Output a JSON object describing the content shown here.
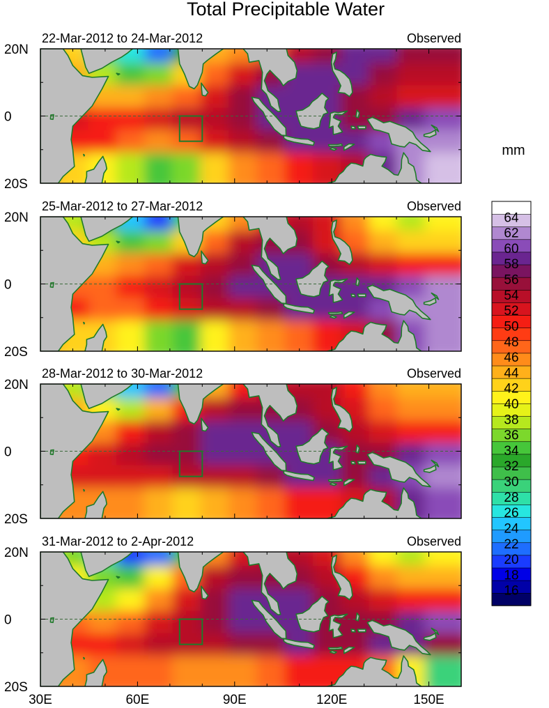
{
  "figure": {
    "title": "Total Precipitable Water",
    "units": "mm"
  },
  "colors": {
    "land": "#bebebe",
    "coast": "#1f7a2a",
    "box": "#1f7a2a",
    "equator": "#3a6a3a",
    "palette": [
      "#000066",
      "#0000a8",
      "#0000e6",
      "#1a3cff",
      "#1e6eff",
      "#1f9bff",
      "#22c6ff",
      "#27e6e0",
      "#2ee0a8",
      "#3ad27a",
      "#3fbf4a",
      "#2aa82a",
      "#46c63a",
      "#7cd82c",
      "#b6e81e",
      "#e6f218",
      "#fff21a",
      "#ffd21a",
      "#ffb01a",
      "#ff8c1a",
      "#ff661a",
      "#ff3c14",
      "#f51e14",
      "#d8141e",
      "#b80f28",
      "#98103a",
      "#7a1460",
      "#6a2590",
      "#8a4cb8",
      "#b088d0",
      "#d6c0e6",
      "#ffffff"
    ]
  },
  "chart_data": {
    "type": "heatmap",
    "title": "Total Precipitable Water",
    "colorbar": {
      "label": "mm",
      "ticks": [
        16,
        18,
        20,
        22,
        24,
        26,
        28,
        30,
        32,
        34,
        36,
        38,
        40,
        42,
        44,
        46,
        48,
        50,
        52,
        54,
        56,
        58,
        60,
        62,
        64
      ],
      "range": [
        14,
        66
      ],
      "levels": 32
    },
    "x_axis": {
      "range": [
        30,
        160
      ],
      "ticks": [
        30,
        60,
        90,
        120,
        150
      ],
      "tick_labels": [
        "30E",
        "60E",
        "90E",
        "120E",
        "150E"
      ]
    },
    "y_axis": {
      "range": [
        -20,
        20
      ],
      "ticks": [
        20,
        0,
        -20
      ],
      "tick_labels": [
        "20N",
        "0",
        "20S"
      ]
    },
    "box_region": {
      "lon": [
        73,
        80
      ],
      "lat": [
        -7.5,
        0
      ]
    },
    "panels": [
      {
        "period": "22-Mar-2012 to 24-Mar-2012",
        "label": "Observed",
        "tpw_mm": [
          [
            44,
            42,
            30,
            26,
            22,
            32,
            44,
            46,
            48,
            54,
            56,
            58,
            58,
            56,
            56
          ],
          [
            46,
            44,
            38,
            34,
            36,
            42,
            48,
            52,
            56,
            58,
            58,
            58,
            56,
            54,
            54
          ],
          [
            48,
            46,
            44,
            44,
            46,
            48,
            52,
            56,
            58,
            58,
            58,
            56,
            54,
            52,
            52
          ],
          [
            52,
            52,
            50,
            50,
            52,
            54,
            54,
            56,
            58,
            58,
            58,
            56,
            56,
            58,
            60
          ],
          [
            50,
            50,
            50,
            48,
            46,
            48,
            52,
            54,
            56,
            58,
            58,
            58,
            60,
            62,
            62
          ],
          [
            44,
            42,
            40,
            38,
            34,
            36,
            42,
            46,
            48,
            50,
            52,
            54,
            58,
            62,
            64
          ]
        ]
      },
      {
        "period": "25-Mar-2012 to 27-Mar-2012",
        "label": "Observed",
        "tpw_mm": [
          [
            42,
            38,
            32,
            24,
            20,
            30,
            42,
            46,
            50,
            54,
            52,
            46,
            40,
            38,
            40
          ],
          [
            44,
            42,
            38,
            34,
            36,
            42,
            48,
            54,
            56,
            56,
            52,
            48,
            44,
            42,
            42
          ],
          [
            46,
            44,
            44,
            46,
            48,
            52,
            54,
            56,
            58,
            58,
            56,
            54,
            52,
            50,
            50
          ],
          [
            50,
            48,
            48,
            50,
            52,
            54,
            56,
            58,
            58,
            58,
            58,
            58,
            58,
            60,
            62
          ],
          [
            50,
            50,
            48,
            48,
            50,
            52,
            54,
            54,
            56,
            58,
            58,
            58,
            60,
            62,
            62
          ],
          [
            44,
            42,
            42,
            40,
            36,
            34,
            40,
            44,
            46,
            48,
            50,
            52,
            56,
            60,
            62
          ]
        ]
      },
      {
        "period": "28-Mar-2012 to 30-Mar-2012",
        "label": "Observed",
        "tpw_mm": [
          [
            42,
            38,
            30,
            24,
            22,
            34,
            44,
            50,
            52,
            54,
            54,
            50,
            46,
            44,
            44
          ],
          [
            44,
            44,
            40,
            38,
            44,
            50,
            54,
            56,
            56,
            56,
            54,
            52,
            48,
            46,
            46
          ],
          [
            46,
            44,
            46,
            50,
            54,
            56,
            58,
            58,
            58,
            58,
            56,
            54,
            52,
            50,
            50
          ],
          [
            50,
            50,
            52,
            54,
            56,
            56,
            58,
            58,
            58,
            58,
            58,
            56,
            56,
            58,
            60
          ],
          [
            52,
            52,
            52,
            52,
            52,
            54,
            54,
            54,
            56,
            58,
            58,
            56,
            58,
            60,
            62
          ],
          [
            46,
            46,
            46,
            46,
            44,
            42,
            44,
            46,
            48,
            50,
            50,
            52,
            54,
            58,
            60
          ]
        ]
      },
      {
        "period": "31-Mar-2012 to 2-Apr-2012",
        "label": "Observed",
        "tpw_mm": [
          [
            40,
            36,
            28,
            20,
            22,
            34,
            46,
            52,
            54,
            54,
            52,
            46,
            40,
            38,
            40
          ],
          [
            42,
            40,
            36,
            34,
            40,
            48,
            54,
            56,
            56,
            56,
            54,
            50,
            46,
            44,
            44
          ],
          [
            44,
            40,
            38,
            40,
            46,
            52,
            56,
            58,
            58,
            58,
            56,
            54,
            52,
            50,
            50
          ],
          [
            50,
            48,
            46,
            48,
            52,
            54,
            56,
            58,
            58,
            58,
            56,
            56,
            56,
            58,
            60
          ],
          [
            52,
            50,
            50,
            52,
            54,
            54,
            54,
            56,
            56,
            58,
            56,
            56,
            58,
            58,
            56
          ],
          [
            46,
            46,
            48,
            48,
            48,
            46,
            46,
            46,
            48,
            50,
            50,
            50,
            48,
            40,
            30
          ]
        ]
      }
    ]
  }
}
